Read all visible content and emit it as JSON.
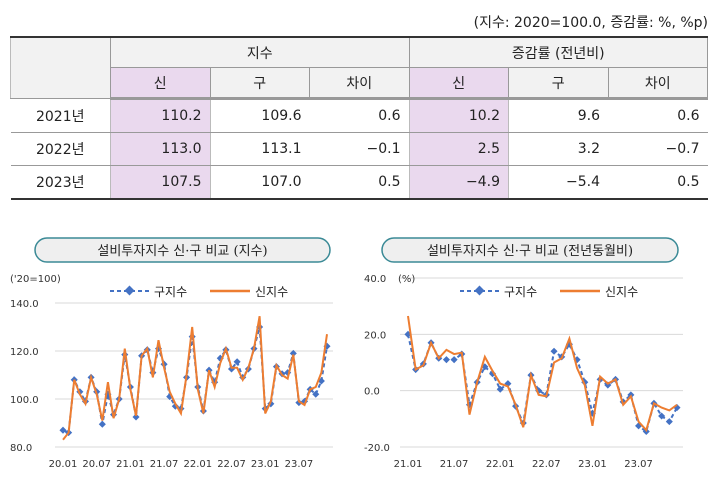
{
  "unit_note": "(지수: 2020=100.0, 증감률: %, %p)",
  "table": {
    "group_headers": [
      "지수",
      "증감률 (전년비)"
    ],
    "sub_headers": [
      "신",
      "구",
      "차이",
      "신",
      "구",
      "차이"
    ],
    "rows": [
      {
        "year": "2021년",
        "cells": [
          "110.2",
          "109.6",
          "0.6",
          "10.2",
          "9.6",
          "0.6"
        ]
      },
      {
        "year": "2022년",
        "cells": [
          "113.0",
          "113.1",
          "−0.1",
          "2.5",
          "3.2",
          "−0.7"
        ]
      },
      {
        "year": "2023년",
        "cells": [
          "107.5",
          "107.0",
          "0.5",
          "−4.9",
          "−5.4",
          "0.5"
        ]
      }
    ]
  },
  "colors": {
    "old": "#4472c4",
    "new": "#ed7d31",
    "highlight": "#ead9ee"
  },
  "chart_data": [
    {
      "type": "line",
      "title": "설비투자지수 신·구 비교 (지수)",
      "ylabel": "('20=100)",
      "ylim": [
        80,
        140
      ],
      "yticks": [
        "80.0",
        "100.0",
        "120.0",
        "140.0"
      ],
      "xticks": [
        "20.01",
        "20.07",
        "21.01",
        "21.07",
        "22.01",
        "22.07",
        "23.01",
        "23.07"
      ],
      "x_start": "20.01",
      "grid": true,
      "legend": "top",
      "series": [
        {
          "name": "구지수",
          "style": "dashed-diamond",
          "values": [
            87,
            86,
            108,
            103,
            99,
            109,
            103,
            89.5,
            102,
            93.5,
            100,
            118.5,
            105,
            92.5,
            118,
            120.5,
            111,
            121,
            114.5,
            101,
            97,
            96,
            109,
            126,
            105,
            95,
            112,
            107,
            117,
            120.5,
            112.5,
            115.5,
            109,
            112.5,
            121,
            130,
            96,
            98,
            113.5,
            110.5,
            111,
            119,
            98.5,
            99,
            104,
            102,
            107.5,
            122
          ]
        },
        {
          "name": "신지수",
          "style": "solid",
          "values": [
            83,
            86,
            108,
            102,
            98,
            109,
            102,
            91,
            107,
            92,
            100,
            121,
            104,
            93,
            118,
            121,
            109,
            124.5,
            113,
            103,
            98,
            94,
            110,
            130,
            104,
            94,
            112,
            105,
            115,
            121,
            113,
            113,
            108,
            113,
            121,
            134.5,
            94,
            99,
            114,
            110,
            108.5,
            118.5,
            99,
            97.5,
            104,
            105,
            111,
            127
          ]
        }
      ]
    },
    {
      "type": "line",
      "title": "설비투자지수 신·구 비교 (전년동월비)",
      "ylabel": "(%)",
      "ylim": [
        -20,
        40
      ],
      "yticks": [
        "-20.0",
        "0.0",
        "20.0",
        "40.0"
      ],
      "xticks": [
        "21.01",
        "21.07",
        "22.01",
        "22.07",
        "23.01",
        "23.07"
      ],
      "x_start": "21.01",
      "grid": true,
      "legend": "top",
      "series": [
        {
          "name": "구지수",
          "style": "dashed-diamond",
          "values": [
            20,
            7.5,
            9.5,
            17,
            11.5,
            11,
            11,
            13,
            -5,
            3,
            8.5,
            6,
            0.5,
            2.5,
            -5.5,
            -11.5,
            5.5,
            0,
            -1.5,
            14,
            12,
            16.5,
            11,
            3,
            -8,
            4,
            2,
            4,
            -4,
            -1.5,
            -12.5,
            -14.5,
            -4.5,
            -9,
            -11,
            -6
          ]
        },
        {
          "name": "신지수",
          "style": "solid",
          "values": [
            26.5,
            7.5,
            9,
            17,
            11.5,
            14.5,
            13,
            13.5,
            -8.5,
            3,
            12,
            7,
            2.5,
            1.5,
            -5,
            -13,
            5.5,
            -1.5,
            -2,
            10,
            11.5,
            18.5,
            8,
            2,
            -12.5,
            5,
            2.5,
            4,
            -5,
            -2,
            -11,
            -14,
            -4.5,
            -6,
            -7,
            -5
          ]
        }
      ]
    }
  ]
}
